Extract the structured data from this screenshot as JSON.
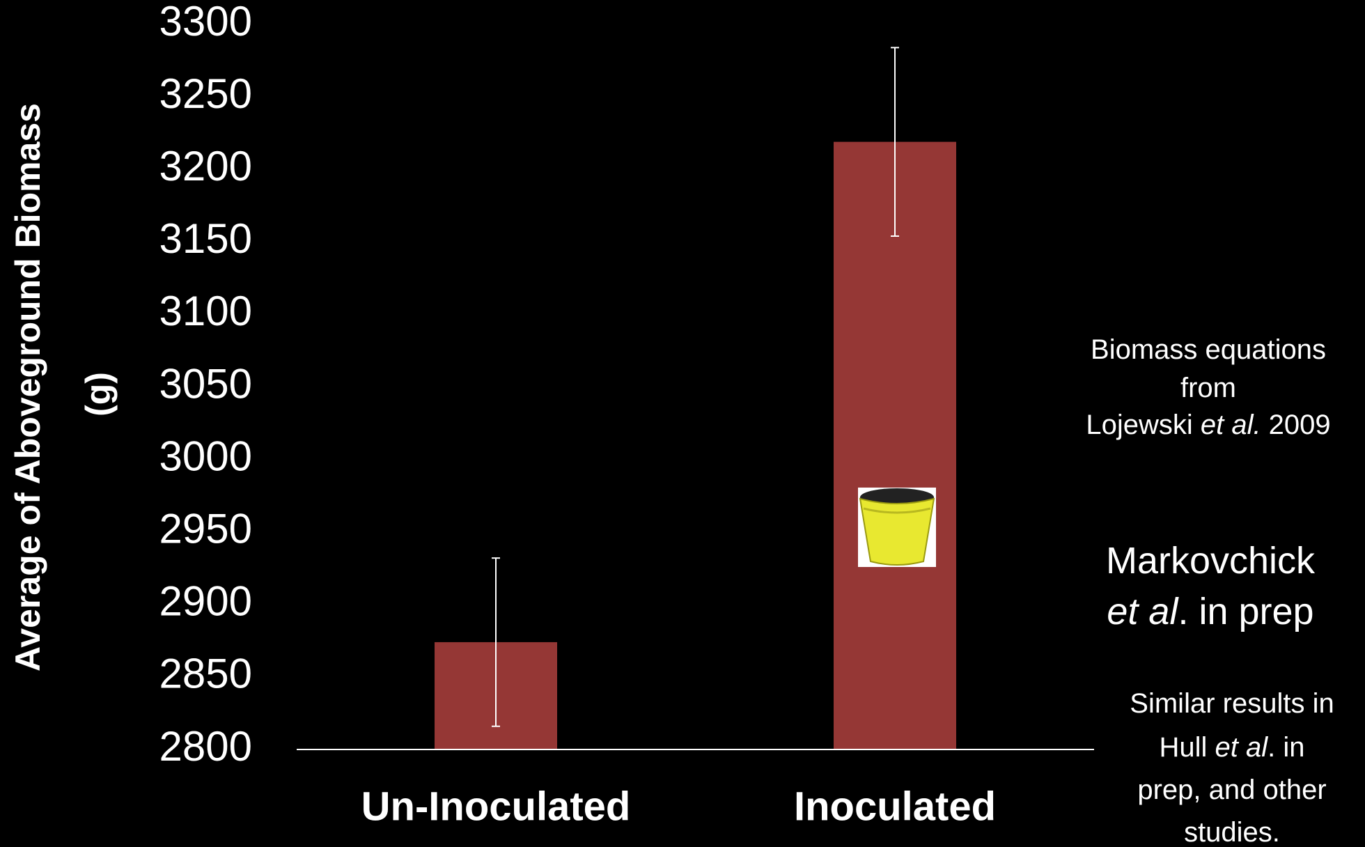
{
  "chart_data": {
    "type": "bar",
    "y_label": "Average of Aboveground Biomass",
    "y_label_unit": "(g)",
    "categories": [
      "Un-Inoculated",
      "Inoculated"
    ],
    "values": [
      2874,
      3219
    ],
    "errors": [
      58,
      65
    ],
    "color": "#953735",
    "error_color": "#ffffff",
    "ylim": [
      2800,
      3300
    ],
    "yticks": [
      2800,
      2850,
      2900,
      2950,
      3000,
      3050,
      3100,
      3150,
      3200,
      3250,
      3300
    ],
    "grid": false,
    "annotations": [
      [
        [
          {
            "text": "Biomass equations"
          }
        ],
        [
          {
            "text": "from"
          }
        ],
        [
          {
            "text": "Lojewski "
          },
          {
            "text": "et al.",
            "italic": true
          },
          {
            "text": " 2009"
          }
        ]
      ],
      [
        [
          {
            "text": "Markovchick"
          }
        ],
        [
          {
            "text": "et al",
            "italic": true
          },
          {
            "text": ". in prep"
          }
        ]
      ],
      [
        [
          {
            "text": "Similar results in"
          }
        ],
        [
          {
            "text": "Hull "
          },
          {
            "text": "et al",
            "italic": true
          },
          {
            "text": ". in"
          }
        ],
        [
          {
            "text": "prep, and other"
          }
        ],
        [
          {
            "text": "studies."
          }
        ]
      ]
    ]
  }
}
